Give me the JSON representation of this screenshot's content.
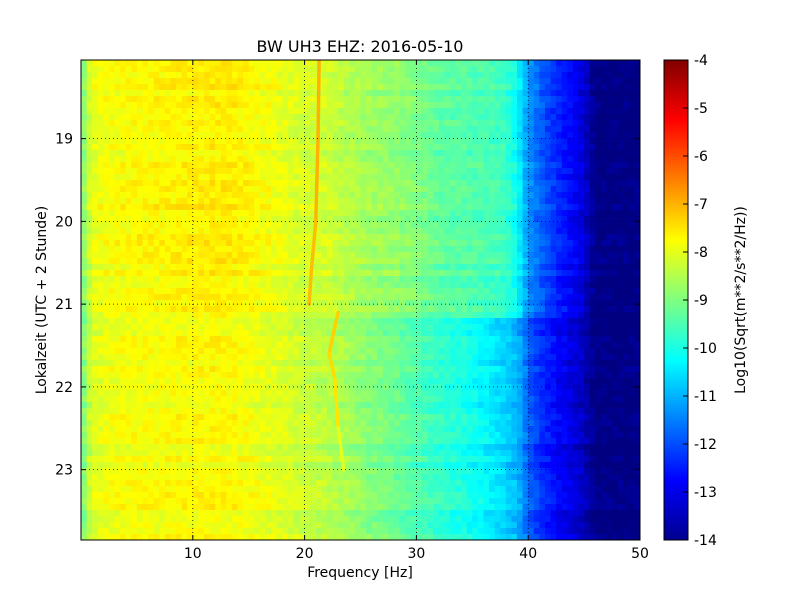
{
  "chart_data": {
    "type": "heatmap",
    "title": "BW UH3 EHZ: 2016-05-10",
    "xlabel": "Frequency [Hz]",
    "ylabel": "Lokalzeit (UTC + 2 Stunde)",
    "xlim": [
      0,
      50
    ],
    "ylim": [
      18.05,
      23.85
    ],
    "y_inverted": true,
    "x_ticks": [
      "10",
      "20",
      "30",
      "40",
      "50"
    ],
    "y_ticks": [
      "19",
      "20",
      "21",
      "22",
      "23"
    ],
    "grid": true,
    "colormap": "jet",
    "colorbar": {
      "label": "Log10(Sqrt(m**2/s**2/Hz))",
      "min": -14,
      "max": -4,
      "ticks": [
        "-4",
        "-5",
        "-6",
        "-7",
        "-8",
        "-9",
        "-10",
        "-11",
        "-12",
        "-13",
        "-14"
      ]
    },
    "spectrum_profile": {
      "frequency": [
        0,
        0.5,
        1,
        2,
        5,
        8,
        10,
        12,
        14,
        16,
        18,
        20,
        22,
        24,
        26,
        28,
        30,
        32,
        34,
        36,
        37,
        38,
        39,
        40,
        41,
        42,
        43,
        44,
        45,
        46,
        50
      ],
      "level_before_21h": [
        -9.3,
        -8.5,
        -8.0,
        -7.85,
        -7.75,
        -7.7,
        -7.65,
        -7.6,
        -7.65,
        -7.8,
        -8.0,
        -8.15,
        -8.2,
        -8.5,
        -8.7,
        -8.8,
        -9.0,
        -9.3,
        -9.4,
        -9.5,
        -9.6,
        -9.7,
        -10.2,
        -11.3,
        -11.8,
        -12.2,
        -12.5,
        -12.8,
        -13.2,
        -14,
        -14
      ],
      "level_after_21h": [
        -9.3,
        -8.6,
        -8.1,
        -7.95,
        -7.85,
        -7.8,
        -7.8,
        -7.75,
        -7.8,
        -7.95,
        -8.1,
        -8.3,
        -8.45,
        -8.7,
        -9.0,
        -9.2,
        -9.5,
        -9.8,
        -10.0,
        -10.3,
        -10.5,
        -10.7,
        -11.0,
        -11.8,
        -12.3,
        -12.6,
        -12.9,
        -13.1,
        -13.4,
        -14,
        -14
      ]
    },
    "spectral_line": {
      "points": [
        {
          "time": 18.05,
          "frequency": 21.3,
          "level": -7.0
        },
        {
          "time": 19.0,
          "frequency": 21.2,
          "level": -7.0
        },
        {
          "time": 20.0,
          "frequency": 21.0,
          "level": -7.1
        },
        {
          "time": 20.6,
          "frequency": 20.6,
          "level": -7.1
        },
        {
          "time": 21.0,
          "frequency": 20.4,
          "level": -7.2
        },
        {
          "time": 21.1,
          "frequency": 23.0,
          "level": -7.3
        },
        {
          "time": 21.4,
          "frequency": 22.5,
          "level": -7.3
        },
        {
          "time": 21.6,
          "frequency": 22.2,
          "level": -7.4
        },
        {
          "time": 21.9,
          "frequency": 22.7,
          "level": -7.5
        },
        {
          "time": 22.5,
          "frequency": 23.0,
          "level": -8.0
        },
        {
          "time": 23.0,
          "frequency": 23.5,
          "level": -8.3
        }
      ]
    },
    "transition_time": 21.1
  }
}
